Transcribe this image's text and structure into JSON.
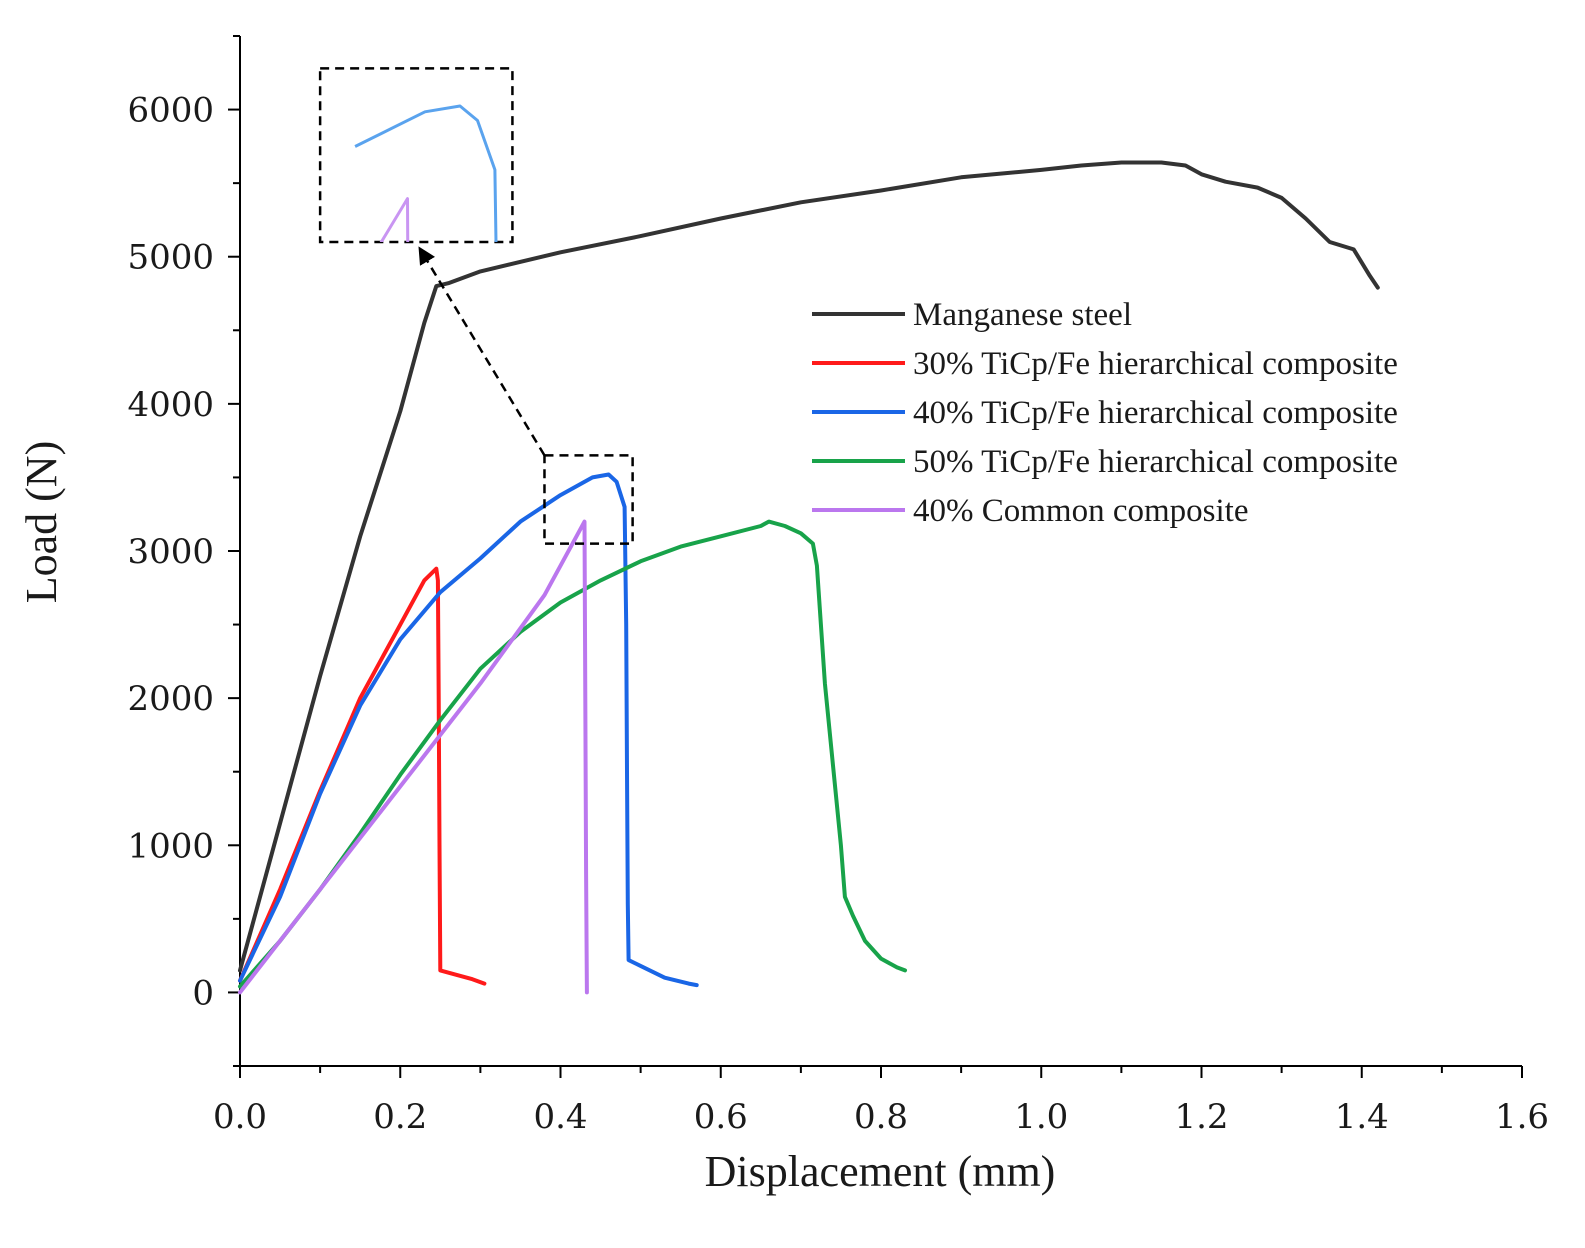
{
  "chart_data": {
    "type": "line",
    "title": "",
    "xlabel": "Displacement (mm)",
    "ylabel": "Load (N)",
    "xlim": [
      0.0,
      1.6
    ],
    "ylim": [
      -500,
      6500
    ],
    "x_ticks": [
      "0.0",
      "0.2",
      "0.4",
      "0.6",
      "0.8",
      "1.0",
      "1.2",
      "1.4",
      "1.6"
    ],
    "x_tick_values": [
      0.0,
      0.2,
      0.4,
      0.6,
      0.8,
      1.0,
      1.2,
      1.4,
      1.6
    ],
    "y_ticks": [
      "0",
      "1000",
      "2000",
      "3000",
      "4000",
      "5000",
      "6000"
    ],
    "y_tick_values": [
      0,
      1000,
      2000,
      3000,
      4000,
      5000,
      6000
    ],
    "grid": false,
    "legend_position": "center-right",
    "series": [
      {
        "name": "Manganese steel",
        "color": "#333333",
        "points": [
          [
            0.0,
            150
          ],
          [
            0.05,
            1150
          ],
          [
            0.1,
            2150
          ],
          [
            0.15,
            3100
          ],
          [
            0.2,
            3950
          ],
          [
            0.23,
            4550
          ],
          [
            0.245,
            4800
          ],
          [
            0.26,
            4820
          ],
          [
            0.3,
            4900
          ],
          [
            0.4,
            5030
          ],
          [
            0.5,
            5140
          ],
          [
            0.6,
            5260
          ],
          [
            0.7,
            5370
          ],
          [
            0.8,
            5450
          ],
          [
            0.9,
            5540
          ],
          [
            1.0,
            5590
          ],
          [
            1.05,
            5620
          ],
          [
            1.1,
            5640
          ],
          [
            1.15,
            5640
          ],
          [
            1.18,
            5620
          ],
          [
            1.2,
            5560
          ],
          [
            1.23,
            5510
          ],
          [
            1.27,
            5470
          ],
          [
            1.3,
            5400
          ],
          [
            1.33,
            5260
          ],
          [
            1.36,
            5100
          ],
          [
            1.39,
            5050
          ],
          [
            1.41,
            4870
          ],
          [
            1.42,
            4790
          ]
        ]
      },
      {
        "name": "30% TiCp/Fe hierarchical composite",
        "color": "#ff1a1a",
        "points": [
          [
            0.0,
            80
          ],
          [
            0.05,
            700
          ],
          [
            0.1,
            1370
          ],
          [
            0.15,
            2000
          ],
          [
            0.2,
            2500
          ],
          [
            0.23,
            2800
          ],
          [
            0.245,
            2880
          ],
          [
            0.247,
            2800
          ],
          [
            0.248,
            2000
          ],
          [
            0.249,
            1000
          ],
          [
            0.25,
            150
          ],
          [
            0.27,
            120
          ],
          [
            0.29,
            90
          ],
          [
            0.305,
            60
          ]
        ]
      },
      {
        "name": "40% TiCp/Fe hierarchical composite",
        "color": "#1a66e6",
        "points": [
          [
            0.0,
            80
          ],
          [
            0.05,
            650
          ],
          [
            0.1,
            1350
          ],
          [
            0.15,
            1950
          ],
          [
            0.2,
            2400
          ],
          [
            0.25,
            2720
          ],
          [
            0.3,
            2950
          ],
          [
            0.35,
            3200
          ],
          [
            0.4,
            3380
          ],
          [
            0.44,
            3500
          ],
          [
            0.46,
            3520
          ],
          [
            0.47,
            3470
          ],
          [
            0.48,
            3300
          ],
          [
            0.482,
            2500
          ],
          [
            0.483,
            1500
          ],
          [
            0.484,
            600
          ],
          [
            0.485,
            220
          ],
          [
            0.5,
            180
          ],
          [
            0.53,
            100
          ],
          [
            0.56,
            60
          ],
          [
            0.57,
            50
          ]
        ]
      },
      {
        "name": "50% TiCp/Fe hierarchical composite",
        "color": "#18a34a",
        "points": [
          [
            0.0,
            40
          ],
          [
            0.05,
            350
          ],
          [
            0.1,
            700
          ],
          [
            0.15,
            1080
          ],
          [
            0.2,
            1480
          ],
          [
            0.25,
            1850
          ],
          [
            0.3,
            2200
          ],
          [
            0.35,
            2450
          ],
          [
            0.4,
            2650
          ],
          [
            0.45,
            2800
          ],
          [
            0.5,
            2930
          ],
          [
            0.55,
            3030
          ],
          [
            0.6,
            3100
          ],
          [
            0.65,
            3170
          ],
          [
            0.66,
            3200
          ],
          [
            0.68,
            3170
          ],
          [
            0.7,
            3120
          ],
          [
            0.715,
            3050
          ],
          [
            0.72,
            2900
          ],
          [
            0.73,
            2100
          ],
          [
            0.74,
            1550
          ],
          [
            0.75,
            1000
          ],
          [
            0.755,
            650
          ],
          [
            0.765,
            520
          ],
          [
            0.78,
            350
          ],
          [
            0.8,
            230
          ],
          [
            0.82,
            170
          ],
          [
            0.83,
            150
          ]
        ]
      },
      {
        "name": "40% Common composite",
        "color": "#bb77ee",
        "points": [
          [
            0.0,
            0
          ],
          [
            0.1,
            700
          ],
          [
            0.2,
            1400
          ],
          [
            0.3,
            2100
          ],
          [
            0.38,
            2700
          ],
          [
            0.42,
            3100
          ],
          [
            0.43,
            3200
          ],
          [
            0.431,
            2000
          ],
          [
            0.432,
            800
          ],
          [
            0.433,
            0
          ]
        ]
      }
    ],
    "annotations": [
      {
        "type": "dashed-box",
        "description": "magnified region around 40% TiCp/Fe peak",
        "x_range": [
          0.38,
          0.49
        ],
        "y_range": [
          3050,
          3650
        ]
      },
      {
        "type": "dashed-box",
        "description": "inset of magnified peak region",
        "x_range": [
          0.1,
          0.34
        ],
        "y_range": [
          5100,
          6280
        ]
      },
      {
        "type": "dashed-arrow",
        "from": [
          0.38,
          3650
        ],
        "to": [
          0.225,
          5050
        ]
      }
    ]
  }
}
